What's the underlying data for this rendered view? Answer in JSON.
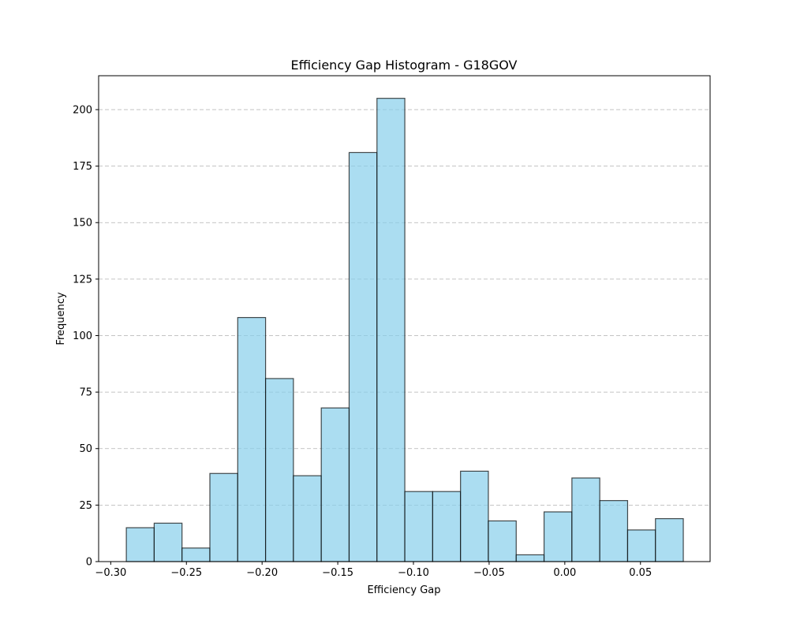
{
  "chart_data": {
    "type": "bar",
    "title": "Efficiency Gap Histogram - G18GOV",
    "xlabel": "Efficiency Gap",
    "ylabel": "Frequency",
    "xlim": [
      -0.308,
      0.096
    ],
    "ylim": [
      0,
      215
    ],
    "x_ticks": [
      {
        "value": -0.3,
        "label": "−0.30"
      },
      {
        "value": -0.25,
        "label": "−0.25"
      },
      {
        "value": -0.2,
        "label": "−0.20"
      },
      {
        "value": -0.15,
        "label": "−0.15"
      },
      {
        "value": -0.1,
        "label": "−0.10"
      },
      {
        "value": -0.05,
        "label": "−0.05"
      },
      {
        "value": 0.0,
        "label": "0.00"
      },
      {
        "value": 0.05,
        "label": "0.05"
      }
    ],
    "y_ticks": [
      {
        "value": 0,
        "label": "0"
      },
      {
        "value": 25,
        "label": "25"
      },
      {
        "value": 50,
        "label": "50"
      },
      {
        "value": 75,
        "label": "75"
      },
      {
        "value": 100,
        "label": "100"
      },
      {
        "value": 125,
        "label": "125"
      },
      {
        "value": 150,
        "label": "150"
      },
      {
        "value": 175,
        "label": "175"
      },
      {
        "value": 200,
        "label": "200"
      }
    ],
    "bin_edges": [
      -0.2897,
      -0.2713,
      -0.2529,
      -0.2345,
      -0.2161,
      -0.1977,
      -0.1793,
      -0.1609,
      -0.1425,
      -0.1241,
      -0.1057,
      -0.0873,
      -0.0689,
      -0.0505,
      -0.0321,
      -0.0137,
      0.0047,
      0.0231,
      0.0415,
      0.0599,
      0.0783
    ],
    "values": [
      15,
      17,
      6,
      39,
      108,
      81,
      38,
      68,
      181,
      205,
      31,
      31,
      40,
      18,
      3,
      22,
      37,
      27,
      14,
      19
    ],
    "grid": "y",
    "colors": {
      "bar_fill": "#87ceeb",
      "bar_edge": "#000000",
      "grid": "#b0b0b0"
    }
  }
}
